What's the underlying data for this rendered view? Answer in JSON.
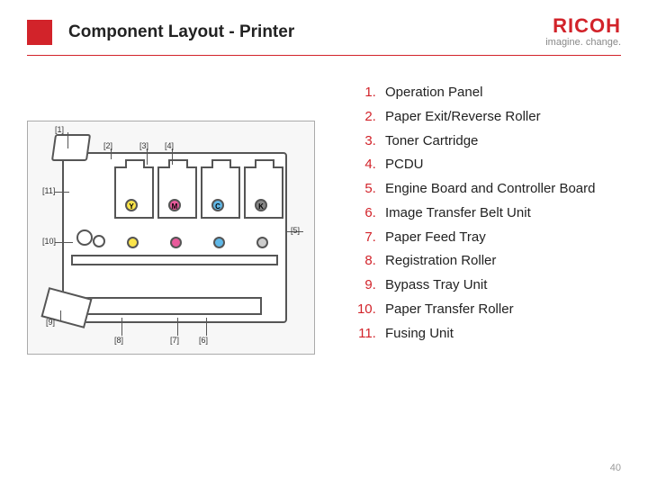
{
  "header": {
    "title": "Component Layout - Printer",
    "brand_name": "RICOH",
    "brand_tag": "imagine. change.",
    "accent_color": "#d2232a"
  },
  "page_number": "40",
  "components": [
    "Operation Panel",
    "Paper Exit/Reverse Roller",
    "Toner Cartridge",
    "PCDU",
    "Engine Board and Controller Board",
    "Image Transfer Belt Unit",
    "Paper Feed Tray",
    "Registration Roller",
    "Bypass Tray Unit",
    "Paper Transfer Roller",
    "Fusing Unit"
  ],
  "callouts": {
    "c1": "[1]",
    "c2": "[2]",
    "c3": "[3]",
    "c4": "[4]",
    "c5": "[5]",
    "c6": "[6]",
    "c7": "[7]",
    "c8": "[8]",
    "c9": "[9]",
    "c10": "[10]",
    "c11": "[11]"
  },
  "toner_labels": {
    "y": "Y",
    "m": "M",
    "c": "C",
    "k": "K"
  },
  "diagram": {
    "type": "infographic",
    "background_color": "#f7f7f7",
    "outline_color": "#555555",
    "toner_colors": {
      "y": "#fbe44a",
      "m": "#e85a9b",
      "c": "#5fb8e8",
      "k": "#888888"
    }
  },
  "list_style": {
    "number_color": "#d2232a",
    "text_color": "#222222",
    "font_size_pt": 12
  }
}
